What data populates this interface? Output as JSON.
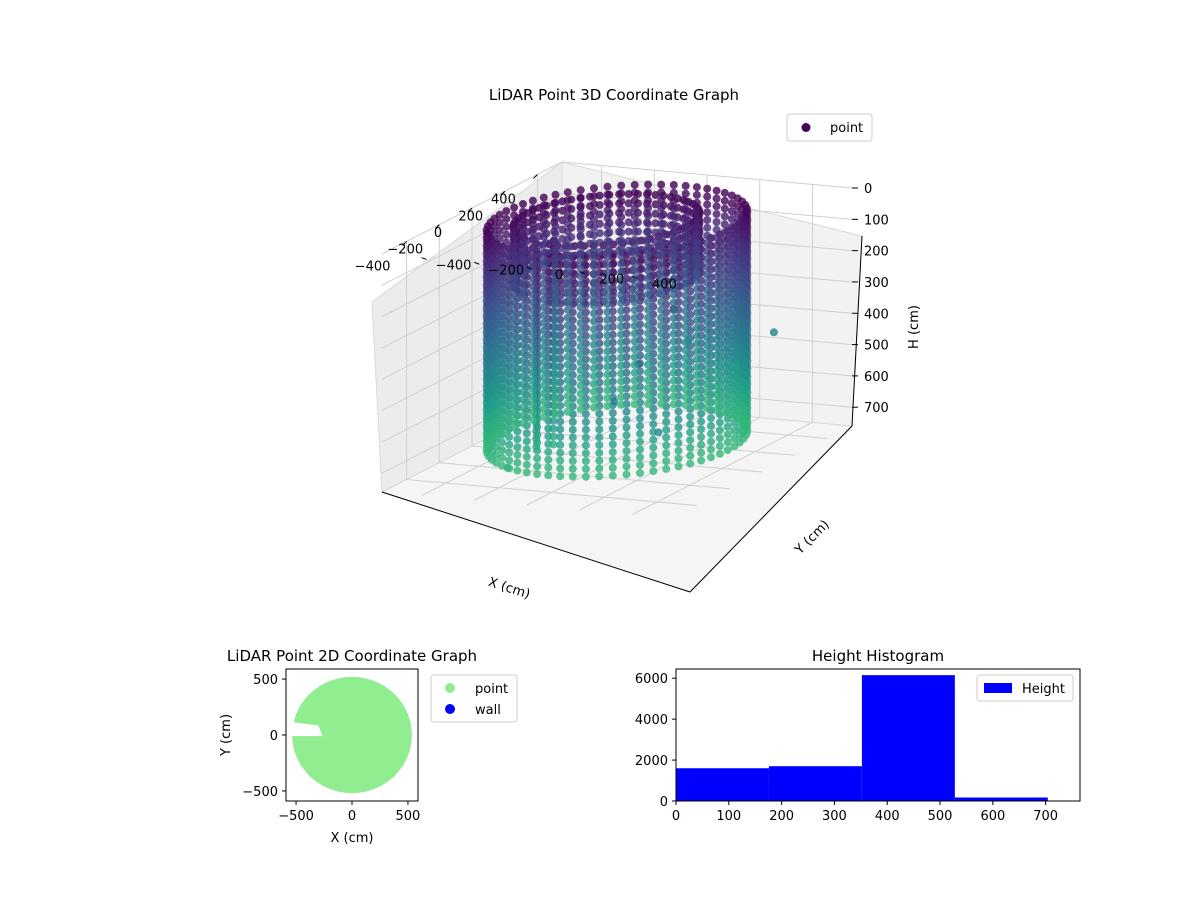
{
  "chart_data": [
    {
      "type": "scatter3d",
      "title": "LiDAR Point 3D Coordinate Graph",
      "xlabel": "X (cm)",
      "ylabel": "Y (cm)",
      "zlabel": "H (cm)",
      "xlim": [
        -550,
        550
      ],
      "ylim": [
        -550,
        550
      ],
      "zlim": [
        0,
        760
      ],
      "z_inverted": true,
      "xticks": [
        "−400",
        "−200",
        "0",
        "200",
        "400"
      ],
      "yticks": [
        "−400",
        "−200",
        "0",
        "200",
        "400"
      ],
      "zticks": [
        "0",
        "100",
        "200",
        "300",
        "400",
        "500",
        "600",
        "700"
      ],
      "grid": true,
      "colormap": "viridis",
      "legend": {
        "placement": "top-right",
        "entries": [
          {
            "label": "point",
            "color": "#440154"
          }
        ]
      },
      "structure": {
        "ring_radius": 420,
        "inner_wall_angle_from_deg": -150,
        "inner_wall_angle_to_deg": 190,
        "height_range": [
          0,
          700
        ],
        "column_spacing_deg": 6,
        "layer_spacing": 25
      }
    },
    {
      "type": "scatter",
      "title": "LiDAR Point 2D Coordinate Graph",
      "xlabel": "X (cm)",
      "ylabel": "Y (cm)",
      "xlim": [
        -590,
        590
      ],
      "ylim": [
        -590,
        590
      ],
      "xticks": [
        "−500",
        "0",
        "500"
      ],
      "yticks": [
        "−500",
        "0",
        "500"
      ],
      "region": {
        "center": [
          0,
          0
        ],
        "radius": 530,
        "notch_y": [
          -10,
          120
        ],
        "notch_depth_x": [
          -560,
          -300
        ]
      },
      "series": [
        {
          "name": "point",
          "color": "#90ee90"
        },
        {
          "name": "wall",
          "color": "#0000ff"
        }
      ],
      "legend": {
        "placement": "outside-right"
      }
    },
    {
      "type": "histogram",
      "title": "Height Histogram",
      "xlim": [
        0,
        765
      ],
      "ylim": [
        0,
        6450
      ],
      "xticks": [
        "0",
        "100",
        "200",
        "300",
        "400",
        "500",
        "600",
        "700"
      ],
      "yticks": [
        "0",
        "2000",
        "4000",
        "6000"
      ],
      "bin_edges": [
        0,
        176,
        352,
        528,
        704
      ],
      "values": [
        1600,
        1700,
        6150,
        170
      ],
      "series": [
        {
          "name": "Height",
          "color": "#0000ff"
        }
      ],
      "legend": {
        "placement": "top-right"
      }
    }
  ]
}
